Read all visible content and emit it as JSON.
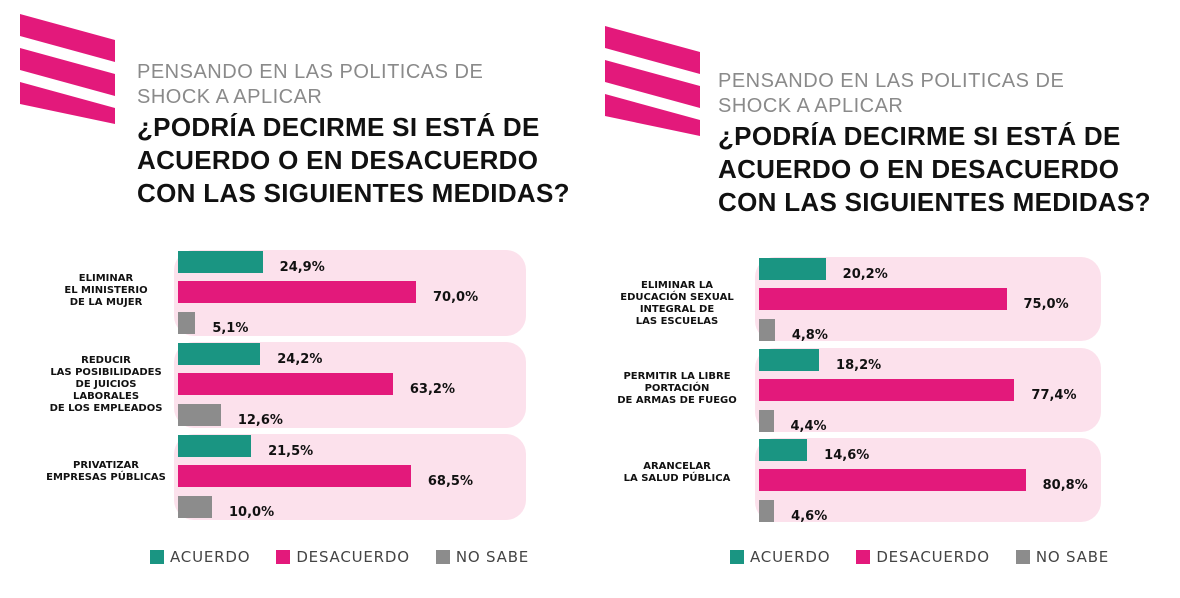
{
  "colors": {
    "acuerdo": "#1a9582",
    "desacuerdo": "#e3197b",
    "nosabe": "#8c8c8c",
    "group_bg": "#fce1ec",
    "logo": "#e3197b"
  },
  "panels": [
    {
      "subtitle": "PENSANDO EN LAS POLITICAS DE\nSHOCK A APLICAR",
      "title": "¿PODRÍA DECIRME SI ESTÁ DE\nACUERDO O EN DESACUERDO\nCON LAS SIGUIENTES MEDIDAS?",
      "legend": [
        "ACUERDO",
        "DESACUERDO",
        "NO SABE"
      ]
    },
    {
      "subtitle": "PENSANDO EN LAS POLITICAS DE\nSHOCK A APLICAR",
      "title": "¿PODRÍA DECIRME SI ESTÁ DE\nACUERDO O EN DESACUERDO\nCON LAS SIGUIENTES MEDIDAS?",
      "legend": [
        "ACUERDO",
        "DESACUERDO",
        "NO SABE"
      ]
    }
  ],
  "chart_data": [
    {
      "type": "bar",
      "orientation": "horizontal",
      "categories": [
        "ELIMINAR\nEL MINISTERIO\nDE LA MUJER",
        "REDUCIR\nLAS POSIBILIDADES\nDE JUICIOS\nLABORALES\nDE LOS EMPLEADOS",
        "PRIVATIZAR\nEMPRESAS PÚBLICAS"
      ],
      "series": [
        {
          "name": "ACUERDO",
          "values": [
            24.9,
            24.2,
            21.5
          ],
          "labels": [
            "24,9%",
            "24,2%",
            "21,5%"
          ]
        },
        {
          "name": "DESACUERDO",
          "values": [
            70.0,
            63.2,
            68.5
          ],
          "labels": [
            "70,0%",
            "63,2%",
            "68,5%"
          ]
        },
        {
          "name": "NO SABE",
          "values": [
            5.1,
            12.6,
            10.0
          ],
          "labels": [
            "5,1%",
            "12,6%",
            "10,0%"
          ]
        }
      ],
      "xlim": [
        0,
        100
      ],
      "legend": "bottom"
    },
    {
      "type": "bar",
      "orientation": "horizontal",
      "categories": [
        "ELIMINAR LA\nEDUCACIÓN SEXUAL\nINTEGRAL DE\nLAS ESCUELAS",
        "PERMITIR LA LIBRE\nPORTACIÓN\nDE ARMAS DE FUEGO",
        "ARANCELAR\nLA SALUD PÚBLICA"
      ],
      "series": [
        {
          "name": "ACUERDO",
          "values": [
            20.2,
            18.2,
            14.6
          ],
          "labels": [
            "20,2%",
            "18,2%",
            "14,6%"
          ]
        },
        {
          "name": "DESACUERDO",
          "values": [
            75.0,
            77.4,
            80.8
          ],
          "labels": [
            "75,0%",
            "77,4%",
            "80,8%"
          ]
        },
        {
          "name": "NO SABE",
          "values": [
            4.8,
            4.4,
            4.6
          ],
          "labels": [
            "4,8%",
            "4,4%",
            "4,6%"
          ]
        }
      ],
      "xlim": [
        0,
        100
      ],
      "legend": "bottom"
    }
  ]
}
